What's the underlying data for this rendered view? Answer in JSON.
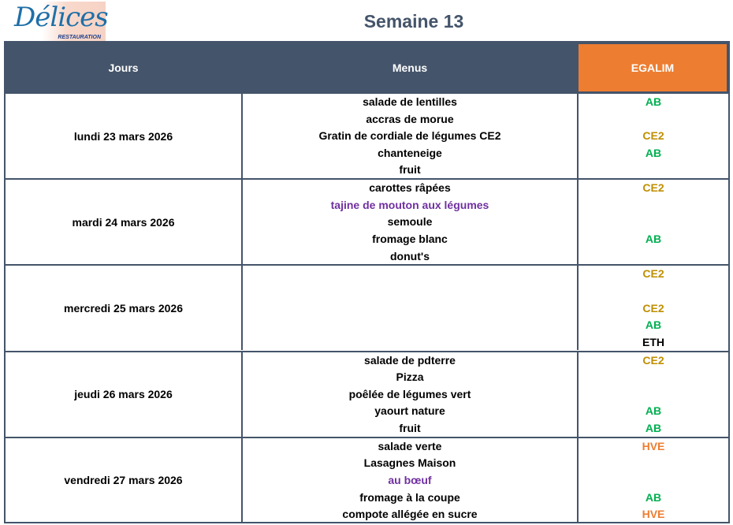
{
  "logo": {
    "text": "Délices",
    "subtext": "RESTAURATION"
  },
  "title": "Semaine 13",
  "headers": {
    "days": "Jours",
    "menus": "Menus",
    "egalim": "EGALIM"
  },
  "colors": {
    "header": "#44546a",
    "egalim_header": "#ed7d31",
    "AB": "#00b050",
    "CE2": "#bf8f00",
    "HVE": "#ed7d31",
    "ETH": "#000000",
    "purple": "#7030a0"
  },
  "days": [
    {
      "day": "lundi 23 mars 2026",
      "menu": [
        {
          "text": "salade de lentilles",
          "label": "AB"
        },
        {
          "text": "accras de morue",
          "label": ""
        },
        {
          "text": "Gratin de cordiale de légumes CE2",
          "label": "CE2"
        },
        {
          "text": "chanteneige",
          "label": "AB"
        },
        {
          "text": "fruit",
          "label": ""
        }
      ]
    },
    {
      "day": "mardi 24 mars 2026",
      "menu": [
        {
          "text": "carottes râpées",
          "label": "CE2"
        },
        {
          "text": "tajine de mouton aux légumes",
          "label": "",
          "color": "purple"
        },
        {
          "text": "semoule",
          "label": ""
        },
        {
          "text": "fromage blanc",
          "label": "AB"
        },
        {
          "text": "donut's",
          "label": ""
        }
      ]
    },
    {
      "day": "mercredi 25 mars 2026",
      "menu": [
        {
          "text": "",
          "label": "CE2"
        },
        {
          "text": "",
          "label": ""
        },
        {
          "text": "",
          "label": "CE2"
        },
        {
          "text": "",
          "label": "AB"
        },
        {
          "text": "",
          "label": "ETH"
        }
      ]
    },
    {
      "day": "jeudi 26 mars 2026",
      "menu": [
        {
          "text": "salade de pdterre",
          "label": "CE2"
        },
        {
          "text": "Pizza",
          "label": ""
        },
        {
          "text": "poêlée de légumes vert",
          "label": ""
        },
        {
          "text": "yaourt nature",
          "label": "AB"
        },
        {
          "text": "fruit",
          "label": "AB"
        }
      ]
    },
    {
      "day": "vendredi 27 mars 2026",
      "menu": [
        {
          "text": "salade verte",
          "label": "HVE"
        },
        {
          "text": "Lasagnes Maison",
          "label": ""
        },
        {
          "text": "au bœuf",
          "label": "",
          "color": "purple"
        },
        {
          "text": "fromage à la coupe",
          "label": "AB"
        },
        {
          "text": "compote allégée en sucre",
          "label": "HVE"
        }
      ]
    }
  ]
}
